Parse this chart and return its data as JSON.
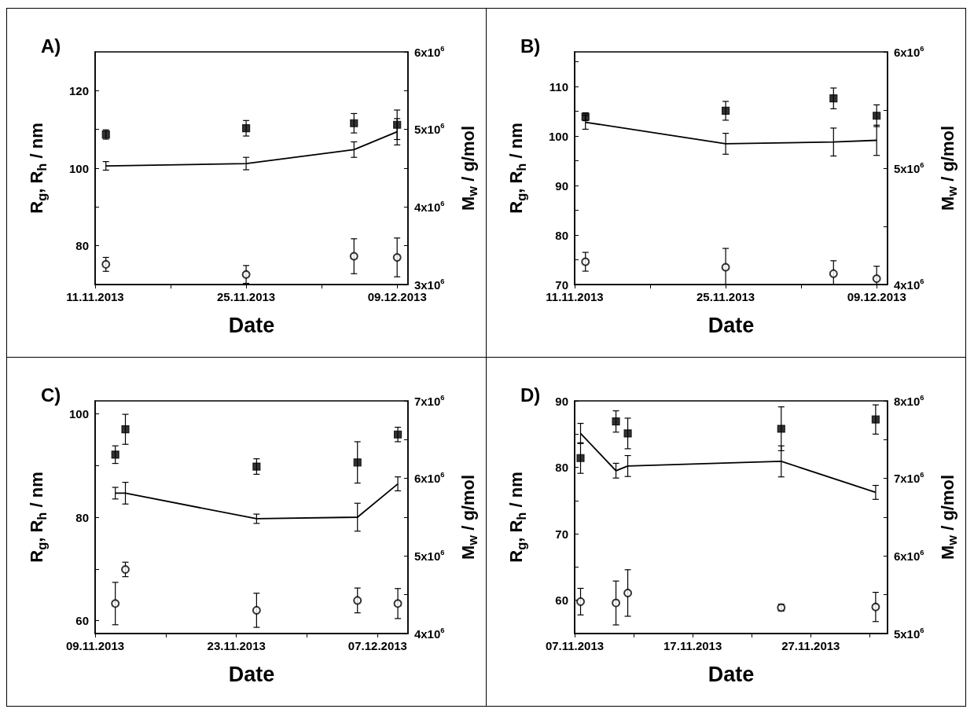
{
  "chart_data": [
    {
      "type": "scatter",
      "title": "A)",
      "xlabel": "Date",
      "ylabel": "R$_{g}$, R$_{h}$ / nm",
      "y2label": "M$_{w}$ / g/mol",
      "xlim": [
        "2013-11-11",
        "2013-12-10"
      ],
      "xticks": [
        {
          "value": "2013-11-11",
          "label": "11.11.2013"
        },
        {
          "value": "2013-11-18",
          "label": null
        },
        {
          "value": "2013-11-25",
          "label": "25.11.2013"
        },
        {
          "value": "2013-12-02",
          "label": null
        },
        {
          "value": "2013-12-09",
          "label": "09.12.2013"
        }
      ],
      "ylim": [
        70,
        130
      ],
      "yticks": [
        80,
        {
          "value": 90,
          "label": null
        },
        100,
        {
          "value": 110,
          "label": null
        },
        120
      ],
      "y2lim": [
        3000000,
        6000000
      ],
      "y2ticks": [
        {
          "value": 3000000,
          "label": "3x10$^{6}$"
        },
        {
          "value": 3500000,
          "label": null
        },
        {
          "value": 4000000,
          "label": "4x10$^{6}$"
        },
        {
          "value": 4500000,
          "label": null
        },
        {
          "value": 5000000,
          "label": "5x10$^{6}$"
        },
        {
          "value": 5500000,
          "label": null
        },
        {
          "value": 6000000,
          "label": "6x10$^{6}$"
        }
      ],
      "x": [
        "2013-11-12",
        "2013-11-25",
        "2013-12-05",
        "2013-12-09"
      ],
      "series": [
        {
          "marker": "square",
          "color": "#000000",
          "values": [
            108.7,
            110.3,
            111.6,
            111.2
          ],
          "errors": [
            1.2,
            2,
            2.5,
            3.8
          ]
        },
        {
          "marker": "circle",
          "color": "#000000",
          "values": [
            75.2,
            72.6,
            77.3,
            77
          ],
          "errors": [
            1.8,
            2.3,
            4.5,
            5
          ]
        },
        {
          "type": "line",
          "marker": "none",
          "axis": "y2",
          "color": "#000000",
          "values": [
            4530000,
            4560000,
            4740000,
            4970000
          ],
          "errors": [
            55000,
            80000,
            100000,
            170000
          ]
        }
      ]
    },
    {
      "type": "scatter",
      "title": "B)",
      "xlabel": "Date",
      "ylabel": "R$_{g}$, R$_{h}$ / nm",
      "y2label": "M$_{w}$ / g/mol",
      "xlim": [
        "2013-11-11",
        "2013-12-10"
      ],
      "xticks": [
        {
          "value": "2013-11-11",
          "label": "11.11.2013"
        },
        {
          "value": "2013-11-18",
          "label": null
        },
        {
          "value": "2013-11-25",
          "label": "25.11.2013"
        },
        {
          "value": "2013-12-02",
          "label": null
        },
        {
          "value": "2013-12-09",
          "label": "09.12.2013"
        }
      ],
      "ylim": [
        70,
        117
      ],
      "yticks": [
        70,
        {
          "value": 75,
          "label": null
        },
        80,
        {
          "value": 85,
          "label": null
        },
        90,
        {
          "value": 95,
          "label": null
        },
        100,
        {
          "value": 105,
          "label": null
        },
        110,
        {
          "value": 115,
          "label": null
        }
      ],
      "y2lim": [
        4000000,
        6000000
      ],
      "y2ticks": [
        {
          "value": 4000000,
          "label": "4x10$^{6}$"
        },
        {
          "value": 4500000,
          "label": null
        },
        {
          "value": 5000000,
          "label": "5x10$^{6}$"
        },
        {
          "value": 5500000,
          "label": null
        },
        {
          "value": 6000000,
          "label": "6x10$^{6}$"
        }
      ],
      "x": [
        "2013-11-12",
        "2013-11-25",
        "2013-12-05",
        "2013-12-09"
      ],
      "series": [
        {
          "marker": "square",
          "color": "#000000",
          "values": [
            103.9,
            105.1,
            107.6,
            104.1
          ],
          "errors": [
            0.8,
            1.9,
            2.1,
            2.2
          ]
        },
        {
          "marker": "circle",
          "color": "#000000",
          "values": [
            74.6,
            73.5,
            72.2,
            71.2
          ],
          "errors": [
            1.9,
            [
              70,
              77.3
            ],
            [
              70,
              74.8
            ],
            [
              70,
              73.7
            ]
          ]
        },
        {
          "type": "line",
          "marker": "none",
          "axis": "y2",
          "color": "#000000",
          "values": [
            5395000,
            5210000,
            5225000,
            5240000
          ],
          "errors": [
            60000,
            90000,
            120000,
            130000
          ]
        }
      ]
    },
    {
      "type": "scatter",
      "title": "C)",
      "xlabel": "Date",
      "ylabel": "R$_{g}$, R$_{h}$ / nm",
      "y2label": "M$_{w}$ / g/mol",
      "xlim": [
        "2013-11-09",
        "2013-12-10"
      ],
      "xticks": [
        {
          "value": "2013-11-09",
          "label": "09.11.2013"
        },
        {
          "value": "2013-11-16",
          "label": null
        },
        {
          "value": "2013-11-23",
          "label": "23.11.2013"
        },
        {
          "value": "2013-11-30",
          "label": null
        },
        {
          "value": "2013-12-07",
          "label": "07.12.2013"
        }
      ],
      "ylim": [
        57.5,
        102.5
      ],
      "yticks": [
        60,
        {
          "value": 70,
          "label": null
        },
        80,
        {
          "value": 90,
          "label": null
        },
        100
      ],
      "y2lim": [
        4000000,
        7000000
      ],
      "y2ticks": [
        {
          "value": 4000000,
          "label": "4x10$^{6}$"
        },
        {
          "value": 4500000,
          "label": null
        },
        {
          "value": 5000000,
          "label": "5x10$^{6}$"
        },
        {
          "value": 5500000,
          "label": null
        },
        {
          "value": 6000000,
          "label": "6x10$^{6}$"
        },
        {
          "value": 6500000,
          "label": null
        },
        {
          "value": 7000000,
          "label": "7x10$^{6}$"
        }
      ],
      "x": [
        "2013-11-11",
        "2013-11-12",
        "2013-11-25",
        "2013-12-05",
        "2013-12-09"
      ],
      "series": [
        {
          "marker": "square",
          "color": "#000000",
          "values": [
            92.1,
            97,
            89.8,
            90.6,
            96
          ],
          "errors": [
            1.7,
            2.9,
            1.5,
            4,
            1.4
          ]
        },
        {
          "marker": "circle",
          "color": "#000000",
          "values": [
            63.3,
            69.9,
            62,
            63.9,
            63.3
          ],
          "errors": [
            4.1,
            1.4,
            3.3,
            2.4,
            2.9
          ]
        },
        {
          "type": "line",
          "marker": "none",
          "axis": "y2",
          "color": "#000000",
          "values": [
            5810000,
            5810000,
            5480000,
            5500000,
            5930000
          ],
          "errors": [
            75000,
            140000,
            60000,
            180000,
            90000
          ]
        }
      ]
    },
    {
      "type": "scatter",
      "title": "D)",
      "xlabel": "Date",
      "ylabel": "R$_{g}$, R$_{h}$ / nm",
      "y2label": "M$_{w}$ / g/mol",
      "xlim": [
        "2013-11-07",
        "2013-12-03T12:00"
      ],
      "xticks": [
        {
          "value": "2013-11-07",
          "label": "07.11.2013"
        },
        {
          "value": "2013-11-12",
          "label": null
        },
        {
          "value": "2013-11-17",
          "label": "17.11.2013"
        },
        {
          "value": "2013-11-22",
          "label": null
        },
        {
          "value": "2013-11-27",
          "label": "27.11.2013"
        },
        {
          "value": "2013-12-02",
          "label": null
        }
      ],
      "ylim": [
        55,
        90
      ],
      "yticks": [
        {
          "value": 55,
          "label": null
        },
        60,
        {
          "value": 65,
          "label": null
        },
        70,
        {
          "value": 75,
          "label": null
        },
        80,
        {
          "value": 85,
          "label": null
        },
        90
      ],
      "y2lim": [
        5000000,
        8000000
      ],
      "y2ticks": [
        {
          "value": 5000000,
          "label": "5x10$^{6}$"
        },
        {
          "value": 5500000,
          "label": null
        },
        {
          "value": 6000000,
          "label": "6x10$^{6}$"
        },
        {
          "value": 6500000,
          "label": null
        },
        {
          "value": 7000000,
          "label": "7x10$^{6}$"
        },
        {
          "value": 7500000,
          "label": null
        },
        {
          "value": 8000000,
          "label": "8x10$^{6}$"
        }
      ],
      "x": [
        "2013-11-07T12:00",
        "2013-11-10T12:00",
        "2013-11-11T12:00",
        "2013-11-24T12:00",
        "2013-12-02T12:00"
      ],
      "series": [
        {
          "marker": "square",
          "color": "#000000",
          "values": [
            81.4,
            86.9,
            85.1,
            85.8,
            87.2
          ],
          "errors": [
            2.3,
            1.6,
            2.3,
            3.3,
            2.2
          ]
        },
        {
          "marker": "circle",
          "color": "#000000",
          "values": [
            59.8,
            59.6,
            61.1,
            58.9,
            59
          ],
          "errors": [
            2,
            3.3,
            3.5,
            0.5,
            2.2
          ]
        },
        {
          "type": "line",
          "marker": "none",
          "axis": "y2",
          "color": "#000000",
          "values": [
            7580000,
            7100000,
            7160000,
            7220000,
            6820000
          ],
          "errors": [
            130000,
            95000,
            135000,
            200000,
            90000
          ]
        }
      ]
    }
  ]
}
